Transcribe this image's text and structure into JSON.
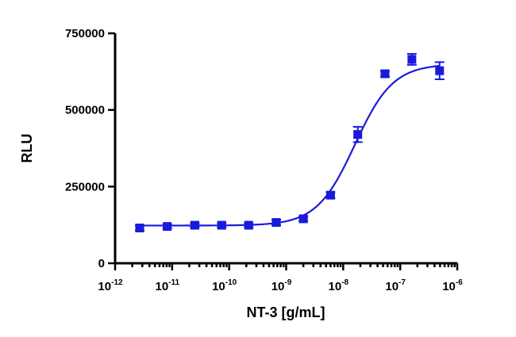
{
  "chart_data": {
    "type": "scatter",
    "xscale": "log",
    "xlim": [
      1e-12,
      1e-06
    ],
    "ylim": [
      0,
      750000
    ],
    "xlabel": "NT-3 [g/mL]",
    "ylabel": "RLU",
    "grid": false,
    "yticks": [
      0,
      250000,
      500000,
      750000
    ],
    "ytick_labels": [
      "0",
      "250000",
      "500000",
      "750000"
    ],
    "xticks": [
      {
        "value": 1e-12,
        "base": "10",
        "exp": "-12"
      },
      {
        "value": 1e-11,
        "base": "10",
        "exp": "-11"
      },
      {
        "value": 1e-10,
        "base": "10",
        "exp": "-10"
      },
      {
        "value": 1e-09,
        "base": "10",
        "exp": "-9"
      },
      {
        "value": 1e-08,
        "base": "10",
        "exp": "-8"
      },
      {
        "value": 1e-07,
        "base": "10",
        "exp": "-7"
      },
      {
        "value": 1e-06,
        "base": "10",
        "exp": "-6"
      }
    ],
    "series": [
      {
        "color": "#1a1adc",
        "x": [
          2.7e-12,
          8.2e-12,
          2.5e-11,
          7.4e-11,
          2.2e-10,
          6.7e-10,
          2e-09,
          6e-09,
          1.8e-08,
          5.4e-08,
          1.6e-07,
          4.9e-07
        ],
        "y": [
          115000,
          120000,
          124000,
          124000,
          124000,
          133000,
          145000,
          222000,
          420000,
          618000,
          665000,
          628000
        ],
        "err": [
          8000,
          6000,
          7000,
          7000,
          6000,
          9000,
          7000,
          10000,
          25000,
          9000,
          18000,
          28000
        ]
      }
    ],
    "fit": {
      "bottom": 123000,
      "top": 650000,
      "ec50": 1.6e-08,
      "hill": 1.3
    }
  }
}
